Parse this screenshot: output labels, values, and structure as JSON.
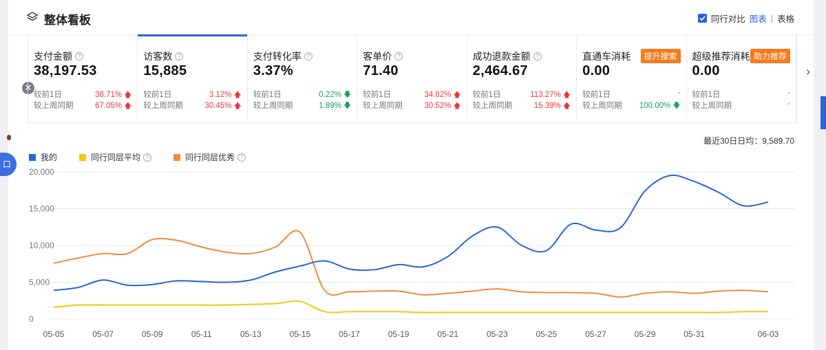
{
  "header": {
    "title": "整体看板",
    "compare_label": "同行对比",
    "view_chart": "图表",
    "view_table": "表格",
    "separator": "|"
  },
  "metrics": [
    {
      "label": "支付金额",
      "value": "38,197.53",
      "tag": "",
      "d1_label": "较前1日",
      "d1": "38.71%",
      "d1_dir": "up",
      "w_label": "较上周同期",
      "w": "67.05%",
      "w_dir": "up"
    },
    {
      "label": "访客数",
      "value": "15,885",
      "tag": "",
      "d1_label": "较前1日",
      "d1": "3.12%",
      "d1_dir": "up",
      "w_label": "较上周同期",
      "w": "30.45%",
      "w_dir": "up"
    },
    {
      "label": "支付转化率",
      "value": "3.37%",
      "tag": "",
      "d1_label": "较前1日",
      "d1": "0.22%",
      "d1_dir": "down",
      "w_label": "较上周同期",
      "w": "1.89%",
      "w_dir": "down"
    },
    {
      "label": "客单价",
      "value": "71.40",
      "tag": "",
      "d1_label": "较前1日",
      "d1": "34.82%",
      "d1_dir": "up",
      "w_label": "较上周同期",
      "w": "30.52%",
      "w_dir": "up"
    },
    {
      "label": "成功退款金额",
      "value": "2,464.67",
      "tag": "",
      "d1_label": "较前1日",
      "d1": "113.27%",
      "d1_dir": "up",
      "w_label": "较上周同期",
      "w": "15.39%",
      "w_dir": "up"
    },
    {
      "label": "直通车消耗",
      "value": "0.00",
      "tag": "提升搜索",
      "d1_label": "较前1日",
      "d1": "-",
      "d1_dir": "none",
      "w_label": "较上周同期",
      "w": "100.00%",
      "w_dir": "down"
    },
    {
      "label": "超级推荐消耗",
      "value": "0.00",
      "tag": "助力推荐",
      "d1_label": "较前1日",
      "d1": "-",
      "d1_dir": "none",
      "w_label": "较上周同期",
      "w": "-",
      "w_dir": "none"
    }
  ],
  "side": {
    "left_pill_text": "口"
  },
  "chart_summary": "最近30日日均：9,589.70",
  "chart_data": {
    "type": "line",
    "x": [
      "05-05",
      "05-06",
      "05-07",
      "05-08",
      "05-09",
      "05-10",
      "05-11",
      "05-12",
      "05-13",
      "05-14",
      "05-15",
      "05-16",
      "05-17",
      "05-18",
      "05-19",
      "05-20",
      "05-21",
      "05-22",
      "05-23",
      "05-24",
      "05-25",
      "05-26",
      "05-27",
      "05-28",
      "05-29",
      "05-30",
      "05-31",
      "06-01",
      "06-02",
      "06-03"
    ],
    "x_tick_labels": [
      "05-05",
      "05-07",
      "05-09",
      "05-11",
      "05-13",
      "05-15",
      "05-17",
      "05-19",
      "05-21",
      "05-23",
      "05-25",
      "05-27",
      "05-29",
      "05-31",
      "06-03"
    ],
    "y_ticks": [
      0,
      5000,
      10000,
      15000,
      20000
    ],
    "y_tick_labels": [
      "0",
      "5,000",
      "10,000",
      "15,000",
      "20,000"
    ],
    "ylim": [
      0,
      20000
    ],
    "series": [
      {
        "name": "我的",
        "color": "#2a64d6",
        "values": [
          3900,
          4300,
          5300,
          4600,
          4700,
          5200,
          5100,
          5000,
          5300,
          6400,
          7200,
          7900,
          6800,
          6700,
          7400,
          7100,
          8500,
          11300,
          12500,
          10000,
          9300,
          12900,
          12100,
          12400,
          17400,
          19500,
          18700,
          17200,
          15400,
          15900
        ]
      },
      {
        "name": "同行同层平均",
        "color": "#f2c811",
        "values": [
          1600,
          1900,
          1900,
          1900,
          1900,
          1900,
          1900,
          1900,
          2000,
          2100,
          2400,
          1000,
          1000,
          1000,
          1000,
          900,
          900,
          900,
          900,
          900,
          900,
          900,
          900,
          900,
          900,
          900,
          900,
          900,
          1000,
          1000
        ]
      },
      {
        "name": "同行同层优秀",
        "color": "#f38a3a",
        "values": [
          7600,
          8300,
          8900,
          8900,
          10800,
          10700,
          9800,
          9100,
          8900,
          9800,
          11800,
          3900,
          3700,
          3800,
          3800,
          3300,
          3500,
          3800,
          4100,
          3700,
          3600,
          3600,
          3500,
          3000,
          3500,
          3700,
          3500,
          3800,
          3900,
          3700
        ]
      }
    ]
  }
}
